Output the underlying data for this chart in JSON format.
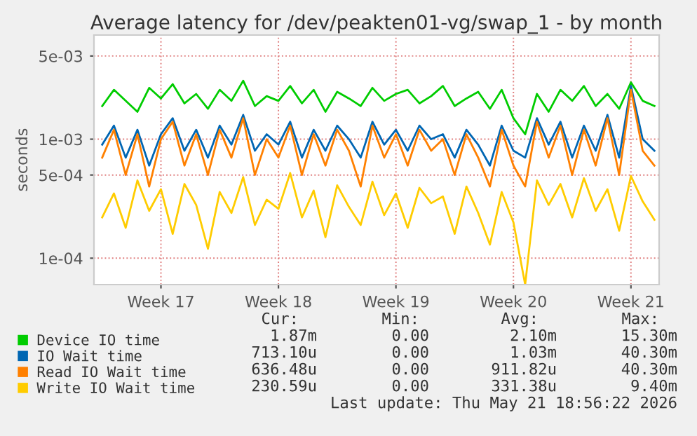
{
  "chart_data": {
    "type": "line",
    "title": "Average latency for /dev/peakten01-vg/swap_1 - by month",
    "ylabel": "seconds",
    "log": "y",
    "categories": [
      null,
      null,
      null,
      null,
      null,
      "Week 17",
      null,
      null,
      null,
      null,
      null,
      null,
      null,
      null,
      null,
      "Week 18",
      null,
      null,
      null,
      null,
      null,
      null,
      null,
      null,
      null,
      "Week 19",
      null,
      null,
      null,
      null,
      null,
      null,
      null,
      null,
      null,
      "Week 20",
      null,
      null,
      null,
      null,
      null,
      null,
      null,
      null,
      null,
      "Week 21",
      null,
      null
    ],
    "series": [
      {
        "name": "Device IO time",
        "color": "#00cc00",
        "values": [
          0.0019,
          0.0026,
          0.0021,
          0.0017,
          0.0027,
          0.0022,
          0.0029,
          0.002,
          0.0024,
          0.0018,
          0.0026,
          0.0021,
          0.0031,
          0.0019,
          0.0023,
          0.0021,
          0.0028,
          0.002,
          0.0026,
          0.0017,
          0.0025,
          0.0022,
          0.0019,
          0.0027,
          0.0021,
          0.0024,
          0.0026,
          0.002,
          0.0023,
          0.0028,
          0.0019,
          0.0022,
          0.0025,
          0.0018,
          0.0026,
          0.0015,
          0.0011,
          0.0024,
          0.0017,
          0.0026,
          0.0021,
          0.0028,
          0.0019,
          0.0024,
          0.0018,
          0.003,
          0.0021,
          0.0019
        ]
      },
      {
        "name": "IO Wait time",
        "color": "#0066b3",
        "values": [
          0.0009,
          0.0013,
          0.0007,
          0.0012,
          0.0006,
          0.0011,
          0.0015,
          0.0008,
          0.0012,
          0.0007,
          0.0013,
          0.0009,
          0.0016,
          0.0008,
          0.0011,
          0.0009,
          0.0014,
          0.0007,
          0.0012,
          0.0008,
          0.0013,
          0.001,
          0.0007,
          0.0014,
          0.0009,
          0.0012,
          0.0008,
          0.0013,
          0.001,
          0.0011,
          0.0007,
          0.0012,
          0.0009,
          0.0006,
          0.0013,
          0.0008,
          0.0007,
          0.0015,
          0.0009,
          0.0014,
          0.0007,
          0.0013,
          0.0008,
          0.0016,
          0.0007,
          0.0028,
          0.001,
          0.0008
        ]
      },
      {
        "name": "Read IO Wait time",
        "color": "#ff8000",
        "values": [
          0.0007,
          0.0012,
          0.0005,
          0.0011,
          0.0004,
          0.001,
          0.0014,
          0.0006,
          0.0011,
          0.0005,
          0.0012,
          0.0007,
          0.0015,
          0.0005,
          0.001,
          0.0007,
          0.0013,
          0.0005,
          0.0011,
          0.0006,
          0.0012,
          0.0008,
          0.0004,
          0.0013,
          0.0007,
          0.0011,
          0.0006,
          0.0012,
          0.0008,
          0.001,
          0.0005,
          0.0011,
          0.0007,
          0.0004,
          0.0012,
          0.0006,
          0.0004,
          0.0014,
          0.0007,
          0.0013,
          0.0005,
          0.0012,
          0.0006,
          0.0015,
          0.0005,
          0.0026,
          0.0008,
          0.0006
        ]
      },
      {
        "name": "Write IO Wait time",
        "color": "#ffcc00",
        "values": [
          0.00022,
          0.00035,
          0.00018,
          0.00045,
          0.00025,
          0.00038,
          0.00016,
          0.00042,
          0.00028,
          0.00012,
          0.00036,
          0.00024,
          0.00048,
          0.00019,
          0.00031,
          0.00026,
          0.00052,
          0.00022,
          0.00037,
          0.00015,
          0.00041,
          0.00027,
          0.00019,
          0.00044,
          0.00023,
          0.00035,
          0.00018,
          0.00039,
          0.00029,
          0.00033,
          0.00016,
          0.0004,
          0.00024,
          0.00013,
          0.00036,
          0.0002,
          6e-05,
          0.00045,
          0.00028,
          0.00042,
          0.00022,
          0.00047,
          0.00025,
          0.00038,
          0.00017,
          0.00049,
          0.0003,
          0.00021
        ]
      }
    ],
    "ylim": [
      6e-05,
      0.0075
    ],
    "yticks": [
      {
        "value": 0.0001,
        "label": "1e-04"
      },
      {
        "value": 0.0005,
        "label": "5e-04"
      },
      {
        "value": 0.001,
        "label": "1e-03"
      },
      {
        "value": 0.005,
        "label": "5e-03"
      }
    ],
    "grid": true,
    "legend": "bottom left",
    "line_style": "solid",
    "marker": "none",
    "annotations": [
      "Cur:",
      "Min:",
      "Avg:",
      "Max:",
      "1.87m",
      "0.00",
      "2.10m",
      "15.30m",
      "713.10u",
      "0.00",
      "1.03m",
      "40.30m",
      "636.48u",
      "0.00",
      "911.82u",
      "40.30m",
      "230.59u",
      "0.00",
      "331.38u",
      "9.40m",
      "Last update: Thu May 21 18:56:22 2026"
    ]
  }
}
